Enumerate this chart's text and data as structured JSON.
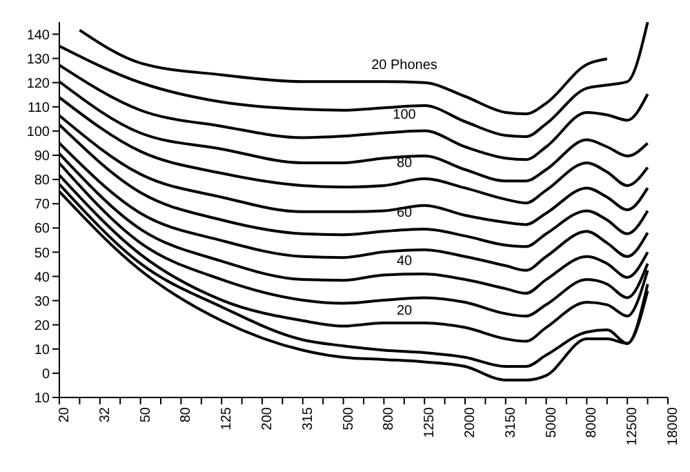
{
  "chart_data": {
    "type": "line",
    "categories": [
      "20",
      null,
      "32",
      null,
      "50",
      null,
      "80",
      null,
      "125",
      null,
      "200",
      null,
      "315",
      null,
      "500",
      null,
      "800",
      null,
      "1250",
      null,
      "2000",
      null,
      "3150",
      null,
      "5000",
      null,
      "8000",
      null,
      "12500",
      null,
      "18000"
    ],
    "series": [
      {
        "color": "#000000",
        "values": [
          null,
          141.7,
          null,
          null,
          128.1,
          null,
          null,
          null,
          123.2,
          null,
          null,
          null,
          120.4,
          null,
          120.4,
          null,
          120.4,
          null,
          120,
          null,
          114.3,
          null,
          107.7,
          107.1,
          111.5,
          null,
          127.5,
          129.8,
          null,
          null,
          null
        ]
      },
      {
        "color": "#000000",
        "values": [
          135.1,
          null,
          null,
          null,
          120,
          null,
          null,
          null,
          112,
          null,
          null,
          null,
          109,
          null,
          108.6,
          null,
          109.6,
          null,
          110.5,
          null,
          103.9,
          null,
          98.2,
          97.7,
          103,
          null,
          117.7,
          119,
          120.4,
          145,
          null
        ]
      },
      {
        "color": "#000000",
        "values": [
          127.2,
          null,
          null,
          null,
          108.6,
          null,
          null,
          null,
          102,
          null,
          null,
          null,
          97.3,
          null,
          97.9,
          null,
          99.2,
          null,
          100.1,
          null,
          93.5,
          null,
          88.8,
          88.2,
          93.5,
          null,
          107.7,
          106.7,
          104.5,
          115.3,
          null
        ]
      },
      {
        "color": "#000000",
        "values": [
          120.4,
          null,
          null,
          null,
          99.2,
          null,
          null,
          null,
          92.6,
          null,
          null,
          null,
          86.9,
          null,
          86.9,
          null,
          88.8,
          null,
          89.7,
          null,
          84.1,
          null,
          79.4,
          79.4,
          84.1,
          null,
          96.4,
          93.5,
          89.7,
          95,
          null
        ]
      },
      {
        "color": "#000000",
        "values": [
          113.9,
          null,
          null,
          null,
          91.6,
          null,
          null,
          null,
          82.6,
          null,
          null,
          null,
          77.5,
          null,
          76.9,
          null,
          77.5,
          null,
          80.3,
          null,
          76.5,
          null,
          71.8,
          70.3,
          75.6,
          null,
          86.9,
          83.1,
          77.5,
          85,
          null
        ]
      },
      {
        "color": "#000000",
        "values": [
          106.4,
          null,
          null,
          null,
          82.2,
          null,
          null,
          null,
          72.7,
          null,
          null,
          null,
          66.7,
          null,
          66.7,
          null,
          67.1,
          null,
          69.3,
          null,
          65.2,
          null,
          62.3,
          61.4,
          66.1,
          null,
          76.5,
          72.7,
          67.5,
          76.5,
          null
        ]
      },
      {
        "color": "#000000",
        "values": [
          102.6,
          null,
          null,
          null,
          74.6,
          null,
          null,
          null,
          63.3,
          null,
          null,
          null,
          57.6,
          null,
          57.2,
          null,
          58.6,
          null,
          59.5,
          null,
          56.7,
          null,
          52.9,
          52.3,
          57.6,
          null,
          67.1,
          63.3,
          57.6,
          67.1,
          null
        ]
      },
      {
        "color": "#000000",
        "values": [
          95,
          null,
          null,
          null,
          66.1,
          null,
          null,
          null,
          54.8,
          null,
          null,
          null,
          48.2,
          null,
          47.8,
          null,
          50.1,
          null,
          51,
          null,
          48.2,
          null,
          44.4,
          42.5,
          48.2,
          null,
          58.6,
          53.8,
          48.2,
          58,
          null
        ]
      },
      {
        "color": "#000000",
        "values": [
          90.7,
          null,
          null,
          null,
          59.5,
          null,
          null,
          null,
          46.3,
          null,
          null,
          null,
          38.7,
          null,
          38.4,
          null,
          40.6,
          null,
          41,
          null,
          38.7,
          null,
          34.9,
          33,
          38.7,
          null,
          48.2,
          45.3,
          39.6,
          50,
          null
        ]
      },
      {
        "color": "#000000",
        "values": [
          86.7,
          null,
          null,
          null,
          53.8,
          null,
          null,
          null,
          38.7,
          null,
          null,
          null,
          30.2,
          null,
          28.9,
          null,
          30.2,
          null,
          31.2,
          null,
          29.3,
          null,
          24.6,
          23.6,
          28.3,
          null,
          38.7,
          36.8,
          31.2,
          45.3,
          null
        ]
      },
      {
        "color": "#000000",
        "values": [
          81.8,
          null,
          null,
          null,
          49.1,
          null,
          null,
          null,
          30.2,
          null,
          null,
          null,
          21.7,
          null,
          19.5,
          null,
          20.8,
          null,
          20.8,
          null,
          18.9,
          null,
          14.2,
          13.2,
          18.9,
          null,
          29.3,
          28.3,
          23.6,
          42.5,
          null
        ]
      },
      {
        "color": "#000000",
        "values": [
          78,
          null,
          null,
          null,
          45.3,
          null,
          null,
          null,
          27.4,
          null,
          null,
          null,
          13.8,
          null,
          11.3,
          null,
          9.5,
          null,
          8.5,
          null,
          6.6,
          null,
          2.8,
          2.8,
          7.5,
          null,
          17,
          17.9,
          12.3,
          36.8,
          null
        ]
      },
      {
        "color": "#000000",
        "values": [
          75,
          null,
          null,
          null,
          42.5,
          null,
          null,
          null,
          21.7,
          null,
          null,
          null,
          9.5,
          null,
          6.6,
          null,
          5.7,
          null,
          4.7,
          null,
          2.8,
          null,
          -2.8,
          -2.8,
          -0.9,
          null,
          14.2,
          14.2,
          12.3,
          34,
          null
        ]
      }
    ],
    "ylim": [
      -10,
      145
    ],
    "yticks": [
      {
        "value": -10,
        "label": "10"
      },
      0,
      10,
      20,
      30,
      40,
      50,
      60,
      70,
      80,
      90,
      100,
      110,
      120,
      130,
      140
    ],
    "grid": false,
    "legend": false,
    "annotations": [
      "20 Phones",
      "100",
      "80",
      "60",
      "40",
      "20"
    ]
  }
}
